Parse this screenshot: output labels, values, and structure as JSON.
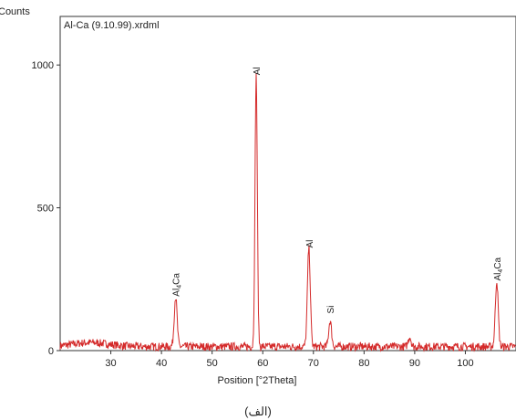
{
  "chart_data": {
    "type": "line",
    "title": "Al-Ca (9.10.99).xrdml",
    "ylabel": "Counts",
    "xlabel": "Position [°2Theta]",
    "caption": "(الف)",
    "xlim": [
      20,
      110
    ],
    "ylim": [
      0,
      1170
    ],
    "xticks": [
      30,
      40,
      50,
      60,
      70,
      80,
      90,
      100
    ],
    "yticks": [
      0,
      500,
      1000
    ],
    "line_color": "#d42a2a",
    "peaks": [
      {
        "x": 42.8,
        "y": 175
      },
      {
        "x": 58.7,
        "y": 950
      },
      {
        "x": 69.1,
        "y": 345
      },
      {
        "x": 73.3,
        "y": 90
      },
      {
        "x": 89.0,
        "y": 35
      },
      {
        "x": 106.2,
        "y": 230
      }
    ],
    "annotations": [
      {
        "id": "ann-1",
        "x": 42.8,
        "y": 180,
        "base": "Al",
        "sub": "4",
        "tail": "Ca"
      },
      {
        "id": "ann-2",
        "x": 58.7,
        "y": 955,
        "base": "Al",
        "sub": "",
        "tail": ""
      },
      {
        "id": "ann-3",
        "x": 69.1,
        "y": 350,
        "base": "Al",
        "sub": "",
        "tail": ""
      },
      {
        "id": "ann-4",
        "x": 73.3,
        "y": 120,
        "base": "Si",
        "sub": "",
        "tail": ""
      },
      {
        "id": "ann-5",
        "x": 106.2,
        "y": 235,
        "base": "Al",
        "sub": "4",
        "tail": "Ca"
      }
    ]
  }
}
